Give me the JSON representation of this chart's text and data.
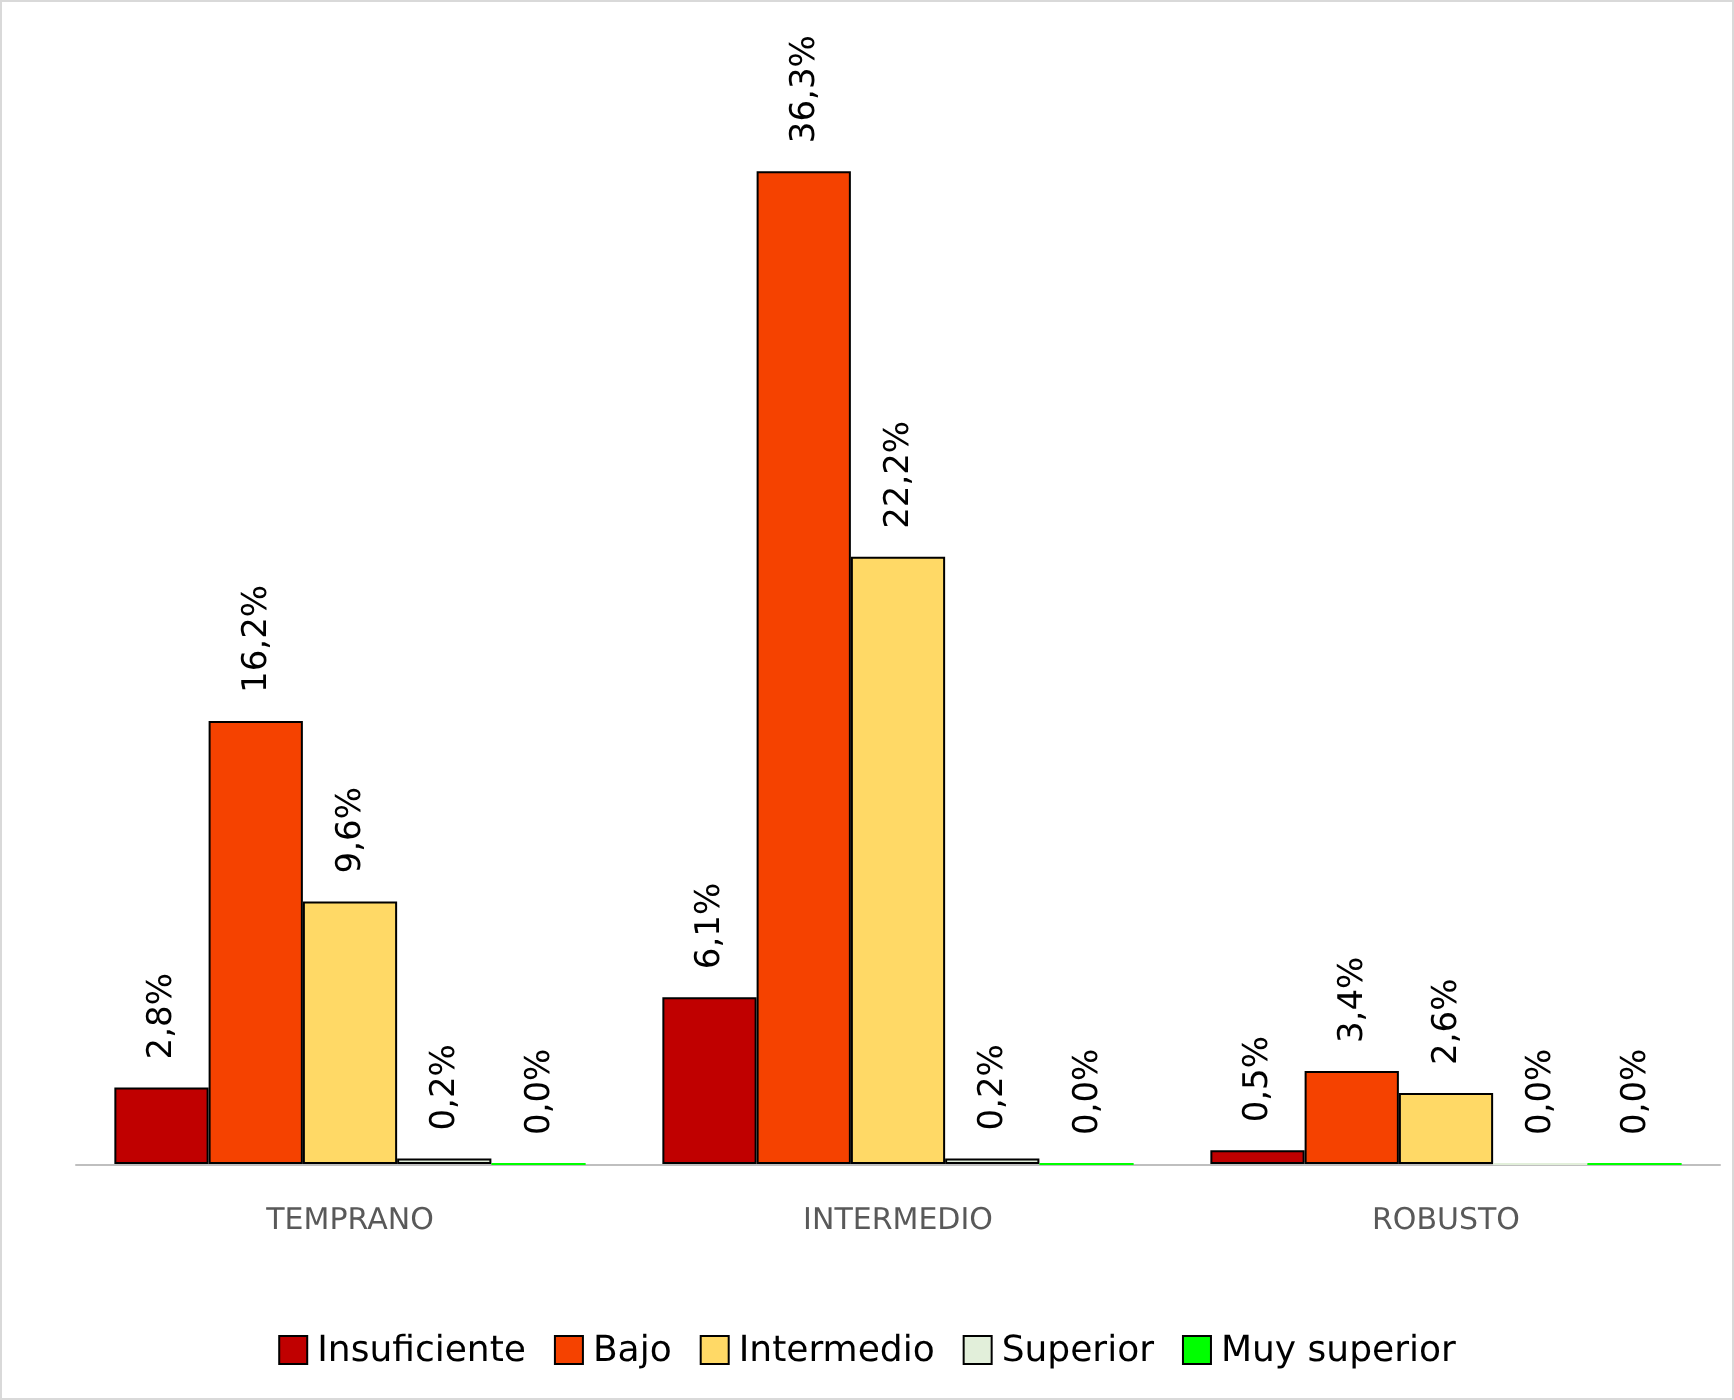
{
  "chart_data": {
    "type": "bar",
    "categories": [
      "TEMPRANO",
      "INTERMEDIO",
      "ROBUSTO"
    ],
    "legend": "bottom",
    "series": [
      {
        "name": "Insuficiente",
        "color": "#c00000",
        "values": [
          2.8,
          6.1,
          0.5
        ],
        "value_labels": [
          "2,8%",
          "6,1%",
          "0,5%"
        ]
      },
      {
        "name": "Bajo",
        "color": "#f54200",
        "values": [
          16.2,
          36.3,
          3.4
        ],
        "value_labels": [
          "16,2%",
          "36,3%",
          "3,4%"
        ]
      },
      {
        "name": "Intermedio",
        "color": "#ffd966",
        "values": [
          9.6,
          22.2,
          2.6
        ],
        "value_labels": [
          "9,6%",
          "22,2%",
          "2,6%"
        ]
      },
      {
        "name": "Superior",
        "color": "#e2efda",
        "values": [
          0.2,
          0.2,
          0.0
        ],
        "value_labels": [
          "0,2%",
          "0,2%",
          "0,0%"
        ]
      },
      {
        "name": "Muy superior",
        "color": "#00ff00",
        "values": [
          0.0,
          0.0,
          0.0
        ],
        "value_labels": [
          "0,0%",
          "0,0%",
          "0,0%"
        ]
      }
    ]
  }
}
